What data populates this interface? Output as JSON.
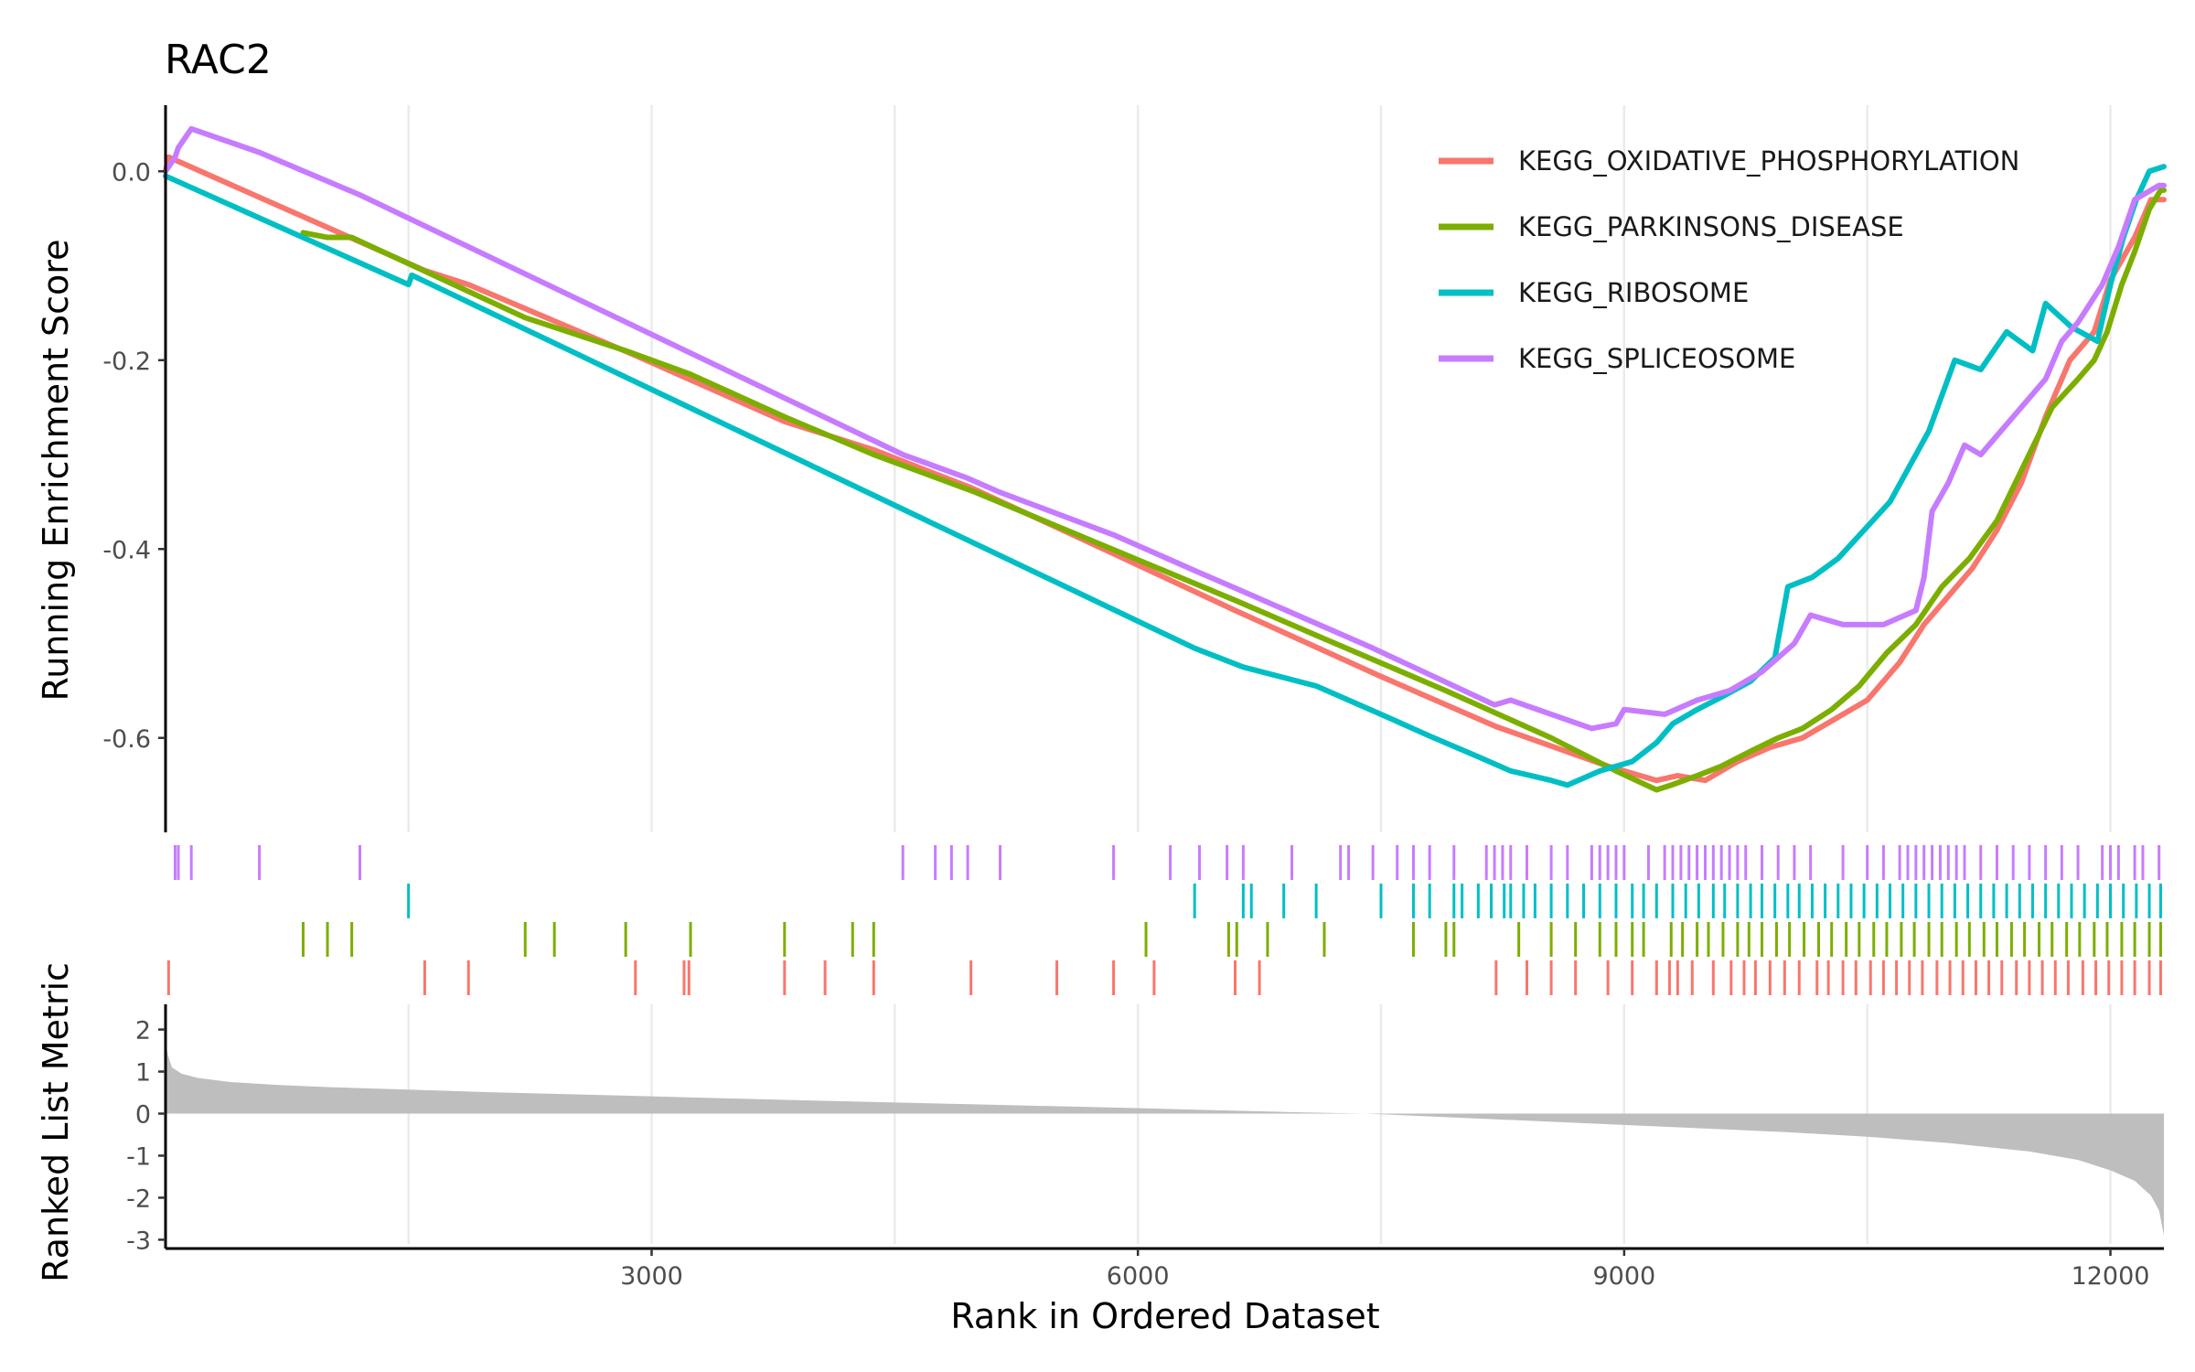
{
  "chart_data": {
    "type": "line",
    "title": "RAC2",
    "xlabel": "Rank in Ordered Dataset",
    "ylabel_top": "Running Enrichment Score",
    "ylabel_bottom": "Ranked List Metric",
    "xlim": [
      1,
      12330
    ],
    "x_ticks": [
      3000,
      6000,
      9000,
      12000
    ],
    "x_gridlines": [
      1500,
      3000,
      4500,
      6000,
      7500,
      9000,
      10500,
      12000
    ],
    "es_ylim": [
      -0.7,
      0.07
    ],
    "es_ticks": [
      0.0,
      -0.2,
      -0.4,
      -0.6
    ],
    "es_tick_labels": [
      "0.0",
      "-0.2",
      "-0.4",
      "-0.6"
    ],
    "metric_ylim": [
      -3.1,
      2.6
    ],
    "metric_ticks": [
      2,
      1,
      0,
      -1,
      -2,
      -3
    ],
    "legend_position": "top-right",
    "series": [
      {
        "name": "KEGG_OXIDATIVE_PHOSPHORYLATION",
        "color": "#F8766D",
        "hits": [
          20,
          1600,
          1870,
          2900,
          3200,
          3230,
          3820,
          4070,
          4370,
          4970,
          5500,
          5850,
          6100,
          6600,
          6750,
          8210,
          8400,
          8550,
          8700,
          8900,
          9050,
          9200,
          9280,
          9330,
          9420,
          9550,
          9660,
          9740,
          9810,
          9900,
          9990,
          10080,
          10190,
          10260,
          10350,
          10430,
          10520,
          10600,
          10680,
          10760,
          10840,
          10930,
          11010,
          11090,
          11170,
          11250,
          11330,
          11420,
          11500,
          11580,
          11660,
          11740,
          11830,
          11910,
          11990,
          12070,
          12150,
          12240,
          12310
        ],
        "es": [
          [
            1,
            0.0
          ],
          [
            20,
            0.015
          ],
          [
            1600,
            -0.105
          ],
          [
            1870,
            -0.12
          ],
          [
            2900,
            -0.195
          ],
          [
            3820,
            -0.265
          ],
          [
            4370,
            -0.295
          ],
          [
            4970,
            -0.335
          ],
          [
            5850,
            -0.405
          ],
          [
            6600,
            -0.465
          ],
          [
            7500,
            -0.535
          ],
          [
            8210,
            -0.588
          ],
          [
            8900,
            -0.63
          ],
          [
            9200,
            -0.645
          ],
          [
            9330,
            -0.64
          ],
          [
            9500,
            -0.645
          ],
          [
            9700,
            -0.625
          ],
          [
            9900,
            -0.61
          ],
          [
            10100,
            -0.6
          ],
          [
            10300,
            -0.58
          ],
          [
            10500,
            -0.56
          ],
          [
            10700,
            -0.52
          ],
          [
            10850,
            -0.48
          ],
          [
            11000,
            -0.45
          ],
          [
            11150,
            -0.42
          ],
          [
            11300,
            -0.38
          ],
          [
            11450,
            -0.33
          ],
          [
            11600,
            -0.26
          ],
          [
            11750,
            -0.2
          ],
          [
            11900,
            -0.17
          ],
          [
            12000,
            -0.115
          ],
          [
            12150,
            -0.07
          ],
          [
            12250,
            -0.03
          ],
          [
            12330,
            -0.03
          ]
        ]
      },
      {
        "name": "KEGG_PARKINSONS_DISEASE",
        "color": "#7CAE00",
        "hits": [
          850,
          1000,
          1150,
          2220,
          2400,
          2840,
          3240,
          3820,
          4240,
          4370,
          6050,
          6560,
          6610,
          6800,
          7150,
          7700,
          7900,
          7950,
          8350,
          8550,
          8700,
          8850,
          8950,
          9050,
          9120,
          9290,
          9360,
          9450,
          9520,
          9610,
          9700,
          9770,
          9850,
          9940,
          10020,
          10110,
          10200,
          10280,
          10370,
          10450,
          10540,
          10620,
          10710,
          10790,
          10880,
          10960,
          11050,
          11130,
          11220,
          11300,
          11390,
          11470,
          11560,
          11640,
          11730,
          11810,
          11900,
          11980,
          12070,
          12150,
          12240,
          12310
        ],
        "es": [
          [
            850,
            -0.065
          ],
          [
            1000,
            -0.07
          ],
          [
            1150,
            -0.07
          ],
          [
            2220,
            -0.155
          ],
          [
            2840,
            -0.19
          ],
          [
            3240,
            -0.215
          ],
          [
            3820,
            -0.26
          ],
          [
            4370,
            -0.3
          ],
          [
            5000,
            -0.34
          ],
          [
            6050,
            -0.415
          ],
          [
            6610,
            -0.455
          ],
          [
            7150,
            -0.495
          ],
          [
            7900,
            -0.55
          ],
          [
            8550,
            -0.6
          ],
          [
            8950,
            -0.635
          ],
          [
            9200,
            -0.655
          ],
          [
            9290,
            -0.65
          ],
          [
            9450,
            -0.64
          ],
          [
            9600,
            -0.63
          ],
          [
            9770,
            -0.615
          ],
          [
            9950,
            -0.6
          ],
          [
            10100,
            -0.59
          ],
          [
            10280,
            -0.57
          ],
          [
            10450,
            -0.545
          ],
          [
            10620,
            -0.51
          ],
          [
            10800,
            -0.48
          ],
          [
            10960,
            -0.44
          ],
          [
            11130,
            -0.41
          ],
          [
            11300,
            -0.37
          ],
          [
            11470,
            -0.31
          ],
          [
            11640,
            -0.25
          ],
          [
            11800,
            -0.22
          ],
          [
            11900,
            -0.2
          ],
          [
            11980,
            -0.17
          ],
          [
            12070,
            -0.12
          ],
          [
            12150,
            -0.085
          ],
          [
            12240,
            -0.04
          ],
          [
            12310,
            -0.02
          ],
          [
            12330,
            -0.02
          ]
        ]
      },
      {
        "name": "KEGG_RIBOSOME",
        "color": "#00BFC4",
        "hits": [
          1500,
          6350,
          6650,
          6700,
          6900,
          7100,
          7500,
          7700,
          7800,
          7950,
          8000,
          8100,
          8180,
          8260,
          8300,
          8380,
          8450,
          8550,
          8650,
          8750,
          8850,
          8950,
          9050,
          9120,
          9200,
          9300,
          9380,
          9460,
          9550,
          9620,
          9700,
          9780,
          9850,
          9930,
          10010,
          10080,
          10160,
          10240,
          10320,
          10400,
          10480,
          10560,
          10640,
          10720,
          10800,
          10880,
          10960,
          11040,
          11120,
          11200,
          11280,
          11360,
          11440,
          11520,
          11600,
          11680,
          11760,
          11840,
          11920,
          12000,
          12080,
          12160,
          12240,
          12310
        ],
        "es": [
          [
            1,
            -0.005
          ],
          [
            1500,
            -0.12
          ],
          [
            1520,
            -0.11
          ],
          [
            6350,
            -0.505
          ],
          [
            6650,
            -0.525
          ],
          [
            7100,
            -0.545
          ],
          [
            7500,
            -0.575
          ],
          [
            7800,
            -0.598
          ],
          [
            8100,
            -0.62
          ],
          [
            8300,
            -0.635
          ],
          [
            8550,
            -0.645
          ],
          [
            8650,
            -0.65
          ],
          [
            8850,
            -0.635
          ],
          [
            9050,
            -0.625
          ],
          [
            9200,
            -0.605
          ],
          [
            9300,
            -0.585
          ],
          [
            9450,
            -0.57
          ],
          [
            9620,
            -0.555
          ],
          [
            9780,
            -0.54
          ],
          [
            9930,
            -0.515
          ],
          [
            10010,
            -0.44
          ],
          [
            10160,
            -0.43
          ],
          [
            10320,
            -0.41
          ],
          [
            10480,
            -0.38
          ],
          [
            10640,
            -0.35
          ],
          [
            10800,
            -0.3
          ],
          [
            10880,
            -0.275
          ],
          [
            11040,
            -0.2
          ],
          [
            11200,
            -0.21
          ],
          [
            11360,
            -0.17
          ],
          [
            11520,
            -0.19
          ],
          [
            11600,
            -0.14
          ],
          [
            11760,
            -0.165
          ],
          [
            11920,
            -0.18
          ],
          [
            12000,
            -0.12
          ],
          [
            12080,
            -0.07
          ],
          [
            12160,
            -0.03
          ],
          [
            12240,
            0.0
          ],
          [
            12330,
            0.005
          ]
        ]
      },
      {
        "name": "KEGG_SPLICEOSOME",
        "color": "#C77CFF",
        "hits": [
          60,
          80,
          160,
          580,
          1200,
          4550,
          4750,
          4850,
          4950,
          5150,
          5850,
          6200,
          6380,
          6550,
          6650,
          6950,
          7250,
          7300,
          7450,
          7600,
          7700,
          7800,
          7950,
          8150,
          8200,
          8250,
          8300,
          8400,
          8550,
          8650,
          8800,
          8850,
          8900,
          8950,
          9000,
          9150,
          9250,
          9300,
          9350,
          9400,
          9450,
          9500,
          9550,
          9600,
          9650,
          9700,
          9750,
          9850,
          9950,
          10050,
          10150,
          10350,
          10500,
          10600,
          10700,
          10750,
          10800,
          10850,
          10900,
          10950,
          11000,
          11050,
          11100,
          11200,
          11300,
          11400,
          11500,
          11600,
          11700,
          11800,
          11950,
          12000,
          12050,
          12150,
          12200,
          12300
        ],
        "es": [
          [
            1,
            0.0
          ],
          [
            60,
            0.015
          ],
          [
            80,
            0.025
          ],
          [
            160,
            0.045
          ],
          [
            580,
            0.02
          ],
          [
            1200,
            -0.025
          ],
          [
            4550,
            -0.3
          ],
          [
            4950,
            -0.325
          ],
          [
            5150,
            -0.34
          ],
          [
            5850,
            -0.385
          ],
          [
            6380,
            -0.425
          ],
          [
            6650,
            -0.445
          ],
          [
            7250,
            -0.49
          ],
          [
            7450,
            -0.505
          ],
          [
            7700,
            -0.525
          ],
          [
            7950,
            -0.545
          ],
          [
            8200,
            -0.565
          ],
          [
            8300,
            -0.56
          ],
          [
            8550,
            -0.575
          ],
          [
            8800,
            -0.59
          ],
          [
            8950,
            -0.585
          ],
          [
            9000,
            -0.57
          ],
          [
            9250,
            -0.575
          ],
          [
            9450,
            -0.56
          ],
          [
            9650,
            -0.55
          ],
          [
            9850,
            -0.53
          ],
          [
            10050,
            -0.5
          ],
          [
            10150,
            -0.47
          ],
          [
            10350,
            -0.48
          ],
          [
            10600,
            -0.48
          ],
          [
            10800,
            -0.465
          ],
          [
            10850,
            -0.43
          ],
          [
            10900,
            -0.36
          ],
          [
            11000,
            -0.33
          ],
          [
            11100,
            -0.29
          ],
          [
            11200,
            -0.3
          ],
          [
            11400,
            -0.26
          ],
          [
            11600,
            -0.22
          ],
          [
            11700,
            -0.18
          ],
          [
            11800,
            -0.16
          ],
          [
            11950,
            -0.12
          ],
          [
            12050,
            -0.08
          ],
          [
            12150,
            -0.03
          ],
          [
            12300,
            -0.015
          ],
          [
            12330,
            -0.015
          ]
        ]
      }
    ],
    "ranked_metric_profile": [
      [
        1,
        1.7
      ],
      [
        15,
        1.4
      ],
      [
        40,
        1.1
      ],
      [
        100,
        0.95
      ],
      [
        200,
        0.85
      ],
      [
        400,
        0.75
      ],
      [
        700,
        0.68
      ],
      [
        1000,
        0.63
      ],
      [
        1500,
        0.57
      ],
      [
        2000,
        0.51
      ],
      [
        3000,
        0.41
      ],
      [
        4000,
        0.31
      ],
      [
        5000,
        0.22
      ],
      [
        6000,
        0.13
      ],
      [
        6500,
        0.08
      ],
      [
        7000,
        0.03
      ],
      [
        7400,
        0.0
      ],
      [
        8000,
        -0.1
      ],
      [
        9000,
        -0.27
      ],
      [
        10000,
        -0.44
      ],
      [
        10500,
        -0.55
      ],
      [
        11000,
        -0.7
      ],
      [
        11500,
        -0.9
      ],
      [
        11800,
        -1.1
      ],
      [
        12000,
        -1.35
      ],
      [
        12150,
        -1.6
      ],
      [
        12250,
        -1.95
      ],
      [
        12300,
        -2.3
      ],
      [
        12330,
        -2.9
      ]
    ],
    "metric_fill_color": "#BEBEBE"
  }
}
